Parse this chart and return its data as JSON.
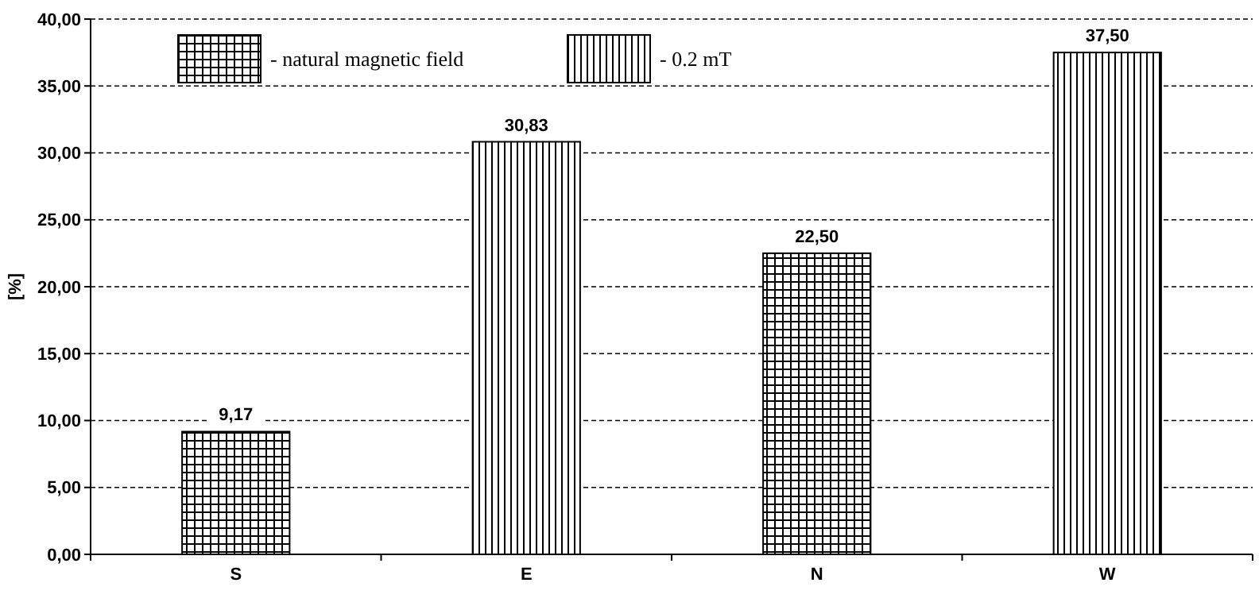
{
  "chart_data": {
    "type": "bar",
    "ylabel": "[%]",
    "categories": [
      "S",
      "E",
      "N",
      "W"
    ],
    "series": [
      {
        "name": "- natural magnetic field",
        "color": "#000000",
        "values": [
          9.17,
          null,
          22.5,
          null
        ],
        "value_labels": [
          "9,17",
          null,
          "22,50",
          null
        ]
      },
      {
        "name": "- 0.2 mT",
        "color": "#000000",
        "values": [
          null,
          30.83,
          null,
          37.5
        ],
        "value_labels": [
          null,
          "30,83",
          null,
          "37,50"
        ]
      }
    ],
    "ylim": [
      0,
      40
    ],
    "yticks": [
      {
        "value": 0,
        "label": "0,00"
      },
      {
        "value": 5,
        "label": "5,00"
      },
      {
        "value": 10,
        "label": "10,00"
      },
      {
        "value": 15,
        "label": "15,00"
      },
      {
        "value": 20,
        "label": "20,00"
      },
      {
        "value": 25,
        "label": "25,00"
      },
      {
        "value": 30,
        "label": "30,00"
      },
      {
        "value": 35,
        "label": "35,00"
      },
      {
        "value": 40,
        "label": "40,00"
      }
    ],
    "grid": "y",
    "legend": "top left"
  }
}
